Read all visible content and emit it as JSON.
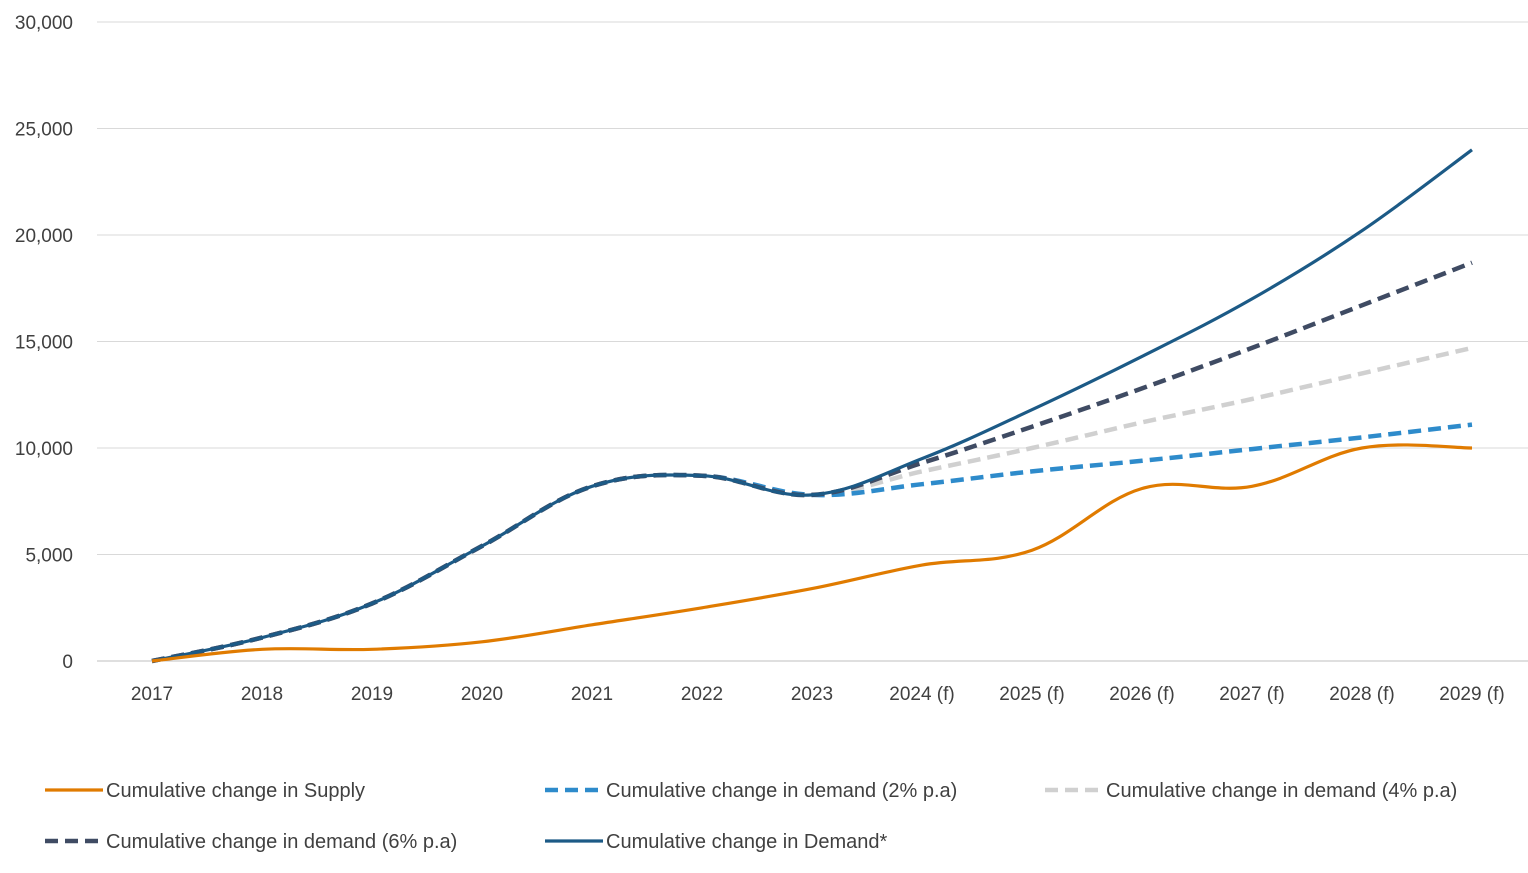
{
  "chart_data": {
    "type": "line",
    "title": "",
    "xlabel": "",
    "ylabel": "",
    "categories": [
      "2017",
      "2018",
      "2019",
      "2020",
      "2021",
      "2022",
      "2023",
      "2024 (f)",
      "2025 (f)",
      "2026 (f)",
      "2027 (f)",
      "2028 (f)",
      "2029 (f)"
    ],
    "ylim": [
      0,
      30000
    ],
    "yticks": [
      0,
      5000,
      10000,
      15000,
      20000,
      25000,
      30000
    ],
    "ytick_labels": [
      "0",
      "5,000",
      "10,000",
      "15,000",
      "20,000",
      "25,000",
      "30,000"
    ],
    "grid": true,
    "legend_position": "bottom",
    "series": [
      {
        "name": "Cumulative change in Supply",
        "color": "#E07B00",
        "style": "solid",
        "values": [
          0,
          550,
          550,
          900,
          1700,
          2500,
          3400,
          4500,
          5200,
          8100,
          8200,
          10000,
          10000
        ]
      },
      {
        "name": "Cumulative change in demand (2% p.a)",
        "color": "#2E8BCB",
        "style": "dashed",
        "values": [
          0,
          1100,
          2700,
          5400,
          8200,
          8700,
          7800,
          8300,
          8900,
          9400,
          9950,
          10500,
          11100
        ]
      },
      {
        "name": "Cumulative change in demand (4% p.a)",
        "color": "#D0D0D0",
        "style": "dashed",
        "values": [
          0,
          1100,
          2700,
          5400,
          8200,
          8700,
          7800,
          8900,
          10000,
          11200,
          12300,
          13500,
          14700
        ]
      },
      {
        "name": "Cumulative change in demand (6% p.a)",
        "color": "#3F4B63",
        "style": "dashed",
        "values": [
          0,
          1100,
          2700,
          5400,
          8200,
          8700,
          7800,
          9300,
          11000,
          12800,
          14700,
          16700,
          18700
        ]
      },
      {
        "name": "Cumulative change in Demand*",
        "color": "#1C5A86",
        "style": "solid",
        "values": [
          0,
          1100,
          2700,
          5400,
          8200,
          8700,
          7800,
          9500,
          11800,
          14300,
          17000,
          20200,
          24000
        ]
      }
    ]
  }
}
